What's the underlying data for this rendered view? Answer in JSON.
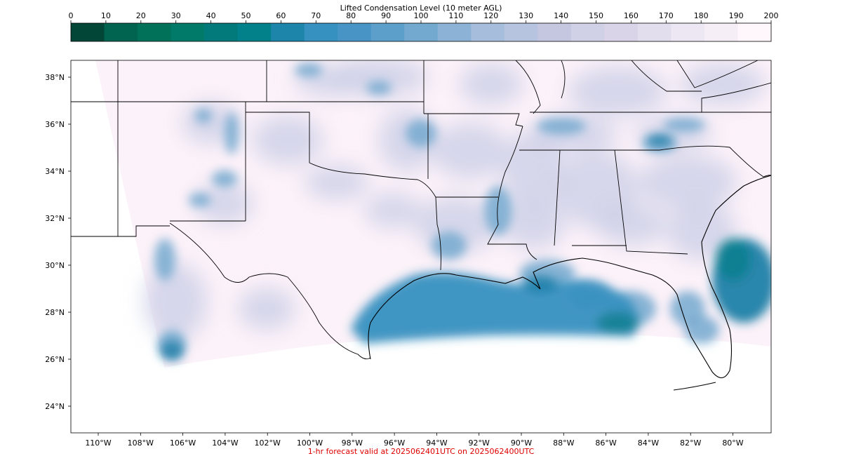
{
  "colorbar": {
    "title": "Lifted Condensation Level (10 meter AGL)",
    "ticks": [
      "0",
      "10",
      "20",
      "30",
      "40",
      "50",
      "60",
      "70",
      "80",
      "90",
      "100",
      "110",
      "120",
      "130",
      "140",
      "150",
      "160",
      "170",
      "180",
      "190",
      "200"
    ],
    "colors": [
      "#014636",
      "#016450",
      "#02715a",
      "#017a6a",
      "#027a7c",
      "#02818a",
      "#1e85aa",
      "#3690c0",
      "#4895c5",
      "#5c9fca",
      "#74a9cf",
      "#8cb3d6",
      "#a6bddb",
      "#b7c4df",
      "#c5c6e0",
      "#d0d1e6",
      "#dad4e8",
      "#e3deed",
      "#ece7f2",
      "#f5eef6",
      "#fff7fb"
    ]
  },
  "map": {
    "lat_labels": [
      "38°N",
      "36°N",
      "34°N",
      "32°N",
      "30°N",
      "28°N",
      "26°N",
      "24°N"
    ],
    "lon_labels": [
      "110°W",
      "108°W",
      "106°W",
      "104°W",
      "102°W",
      "100°W",
      "98°W",
      "96°W",
      "94°W",
      "92°W",
      "90°W",
      "88°W",
      "86°W",
      "84°W",
      "82°W",
      "80°W"
    ],
    "field_colors": {
      "background": "#fcf2f9",
      "light": "#c9cde5",
      "mid": "#74a9cf",
      "strong": "#3690c0",
      "deep": "#1c7fa8",
      "teal": "#0f7f8f"
    }
  },
  "caption": "1-hr forecast valid at 2025062401UTC on 2025062400UTC"
}
